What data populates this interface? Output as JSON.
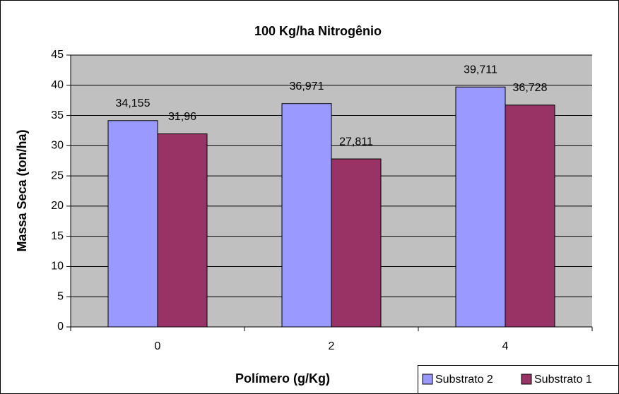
{
  "chart_data": {
    "type": "bar",
    "title": "100 Kg/ha Nitrogênio",
    "x_label": "Polímero (g/Kg)",
    "y_label": "Massa Seca (ton/ha)",
    "categories": [
      "0",
      "2",
      "4"
    ],
    "series": [
      {
        "name": "Substrato 2",
        "color": "#9999ff",
        "values": [
          34.155,
          36.971,
          39.711
        ],
        "value_labels": [
          "34,155",
          "36,971",
          "39,711"
        ]
      },
      {
        "name": "Substrato 1",
        "color": "#993366",
        "values": [
          31.96,
          27.811,
          36.728
        ],
        "value_labels": [
          "31,96",
          "27,811",
          "36,728"
        ]
      }
    ],
    "ylim": [
      0,
      45
    ],
    "yticks": [
      0,
      5,
      10,
      15,
      20,
      25,
      30,
      35,
      40,
      45
    ],
    "grid": true,
    "plot_background": "#c0c0c0",
    "legend": "bottom-right"
  }
}
